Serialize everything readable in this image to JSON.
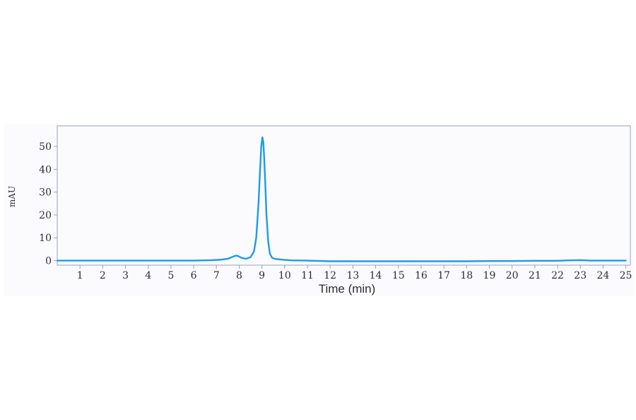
{
  "chart_data": {
    "type": "line",
    "title": "",
    "xlabel": "Time (min)",
    "ylabel": "mAU",
    "xlim": [
      0,
      25.2
    ],
    "ylim": [
      -2,
      59
    ],
    "x_ticks": [
      1,
      2,
      3,
      4,
      5,
      6,
      7,
      8,
      9,
      10,
      11,
      12,
      13,
      14,
      15,
      16,
      17,
      18,
      19,
      20,
      21,
      22,
      23,
      24,
      25
    ],
    "y_ticks": [
      0,
      10,
      20,
      30,
      40,
      50
    ],
    "grid": false,
    "line_color": "#1e9be9",
    "series": [
      {
        "x": [
          0,
          1,
          2,
          3,
          4,
          5,
          6,
          6.8,
          7.2,
          7.5,
          7.7,
          7.85,
          7.95,
          8.1,
          8.3,
          8.5,
          8.65,
          8.75,
          8.85,
          8.92,
          8.97,
          9.02,
          9.06,
          9.1,
          9.15,
          9.2,
          9.28,
          9.35,
          9.45,
          9.6,
          9.8,
          10.0,
          10.3,
          11,
          12,
          13,
          14,
          15,
          16,
          17,
          18,
          19,
          20,
          21,
          22,
          22.5,
          23,
          23.5,
          24,
          25
        ],
        "y": [
          0,
          0,
          0,
          0,
          0,
          0,
          0,
          0.2,
          0.4,
          0.8,
          1.6,
          2.2,
          2.0,
          1.2,
          0.8,
          1.5,
          4.0,
          10.0,
          25.0,
          40.0,
          50.0,
          54.0,
          52.0,
          45.0,
          33.0,
          20.0,
          8.0,
          3.0,
          1.2,
          0.7,
          0.5,
          0.3,
          0.1,
          0,
          -0.3,
          -0.3,
          -0.3,
          -0.3,
          -0.3,
          -0.3,
          -0.3,
          -0.2,
          -0.2,
          -0.1,
          -0.1,
          0.1,
          0.2,
          0,
          0,
          0
        ]
      }
    ]
  }
}
